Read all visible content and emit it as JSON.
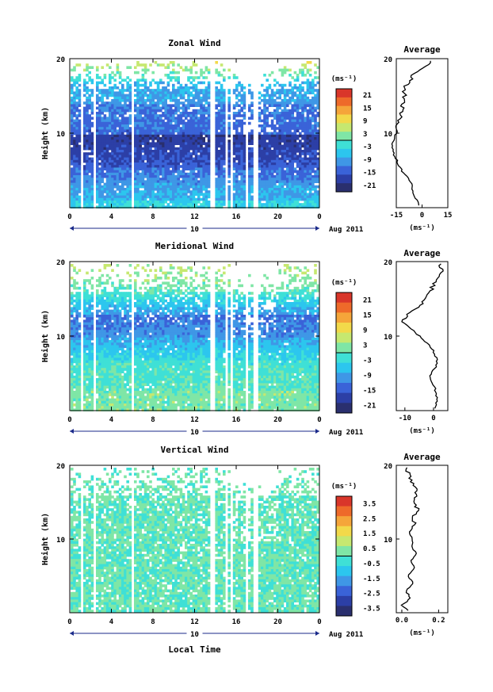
{
  "figure": {
    "x_axis_title": "Local Time",
    "date_label": "Aug 2011",
    "date_day": "10"
  },
  "chart_data": [
    {
      "type": "heatmap",
      "title": "Zonal Wind",
      "ylabel": "Height (km)",
      "x_ticks": [
        "0",
        "4",
        "8",
        "12",
        "16",
        "20",
        "0"
      ],
      "x_range": [
        0,
        24
      ],
      "y_ticks": [
        "10",
        "20"
      ],
      "y_range": [
        0,
        20
      ],
      "colorbar": {
        "unit_label": "(ms⁻¹)",
        "tick_labels": [
          "21",
          "15",
          "9",
          "3",
          "-3",
          "-9",
          "-15",
          "-21"
        ],
        "range": [
          -24,
          24
        ]
      },
      "profile": {
        "title": "Average",
        "x_ticks": [
          "-15",
          "0",
          "15"
        ],
        "xlabel": "(ms⁻¹)",
        "y_ticks": [
          "10",
          "20"
        ],
        "x_range": [
          -15,
          15
        ],
        "height_km": [
          0.5,
          1,
          2,
          3,
          4,
          5,
          6,
          7,
          8,
          9,
          10,
          11,
          12,
          13,
          14,
          15,
          16,
          17,
          18,
          19,
          19.5
        ],
        "values": [
          -2,
          -3,
          -5,
          -6,
          -8,
          -12,
          -14,
          -16,
          -17,
          -17,
          -15,
          -15,
          -13,
          -12,
          -11,
          -10,
          -11,
          -7,
          -5,
          2,
          5
        ]
      }
    },
    {
      "type": "heatmap",
      "title": "Meridional Wind",
      "ylabel": "Height (km)",
      "x_ticks": [
        "0",
        "4",
        "8",
        "12",
        "16",
        "20",
        "0"
      ],
      "x_range": [
        0,
        24
      ],
      "y_ticks": [
        "10",
        "20"
      ],
      "y_range": [
        0,
        20
      ],
      "colorbar": {
        "unit_label": "(ms⁻¹)",
        "tick_labels": [
          "21",
          "15",
          "9",
          "3",
          "-3",
          "-9",
          "-15",
          "-21"
        ],
        "range": [
          -24,
          24
        ]
      },
      "profile": {
        "title": "Average",
        "x_ticks": [
          "-10",
          "0"
        ],
        "xlabel": "(ms⁻¹)",
        "y_ticks": [
          "10",
          "20"
        ],
        "x_range": [
          -13,
          5
        ],
        "height_km": [
          0.5,
          1,
          2,
          3,
          4,
          5,
          6,
          7,
          8,
          9,
          10,
          11,
          12,
          13,
          14,
          15,
          16,
          17,
          18,
          19,
          19.5
        ],
        "values": [
          0.5,
          1,
          1,
          0.5,
          -1,
          -1,
          1,
          1,
          0,
          -2,
          -5,
          -8,
          -11,
          -9,
          -5,
          -3,
          -1,
          0,
          2,
          3,
          2
        ]
      }
    },
    {
      "type": "heatmap",
      "title": "Vertical Wind",
      "ylabel": "Height (km)",
      "x_ticks": [
        "0",
        "4",
        "8",
        "12",
        "16",
        "20",
        "0"
      ],
      "x_range": [
        0,
        24
      ],
      "y_ticks": [
        "10",
        "20"
      ],
      "y_range": [
        0,
        20
      ],
      "colorbar": {
        "unit_label": "(ms⁻¹)",
        "tick_labels": [
          "3.5",
          "2.5",
          "1.5",
          "0.5",
          "-0.5",
          "-1.5",
          "-2.5",
          "-3.5"
        ],
        "range": [
          -4,
          4
        ]
      },
      "profile": {
        "title": "Average",
        "x_ticks": [
          "0.0",
          "0.2"
        ],
        "xlabel": "(ms⁻¹)",
        "y_ticks": [
          "10",
          "20"
        ],
        "x_range": [
          -0.03,
          0.25
        ],
        "height_km": [
          0.5,
          1,
          2,
          3,
          4,
          5,
          6,
          7,
          8,
          9,
          10,
          11,
          12,
          13,
          14,
          15,
          16,
          17,
          18,
          19,
          19.5
        ],
        "values": [
          0.03,
          0.0,
          0.05,
          0.02,
          0.06,
          0.03,
          0.07,
          0.05,
          0.08,
          0.05,
          0.06,
          0.04,
          0.07,
          0.06,
          0.09,
          0.06,
          0.08,
          0.07,
          0.05,
          0.04,
          0.02
        ]
      }
    }
  ]
}
